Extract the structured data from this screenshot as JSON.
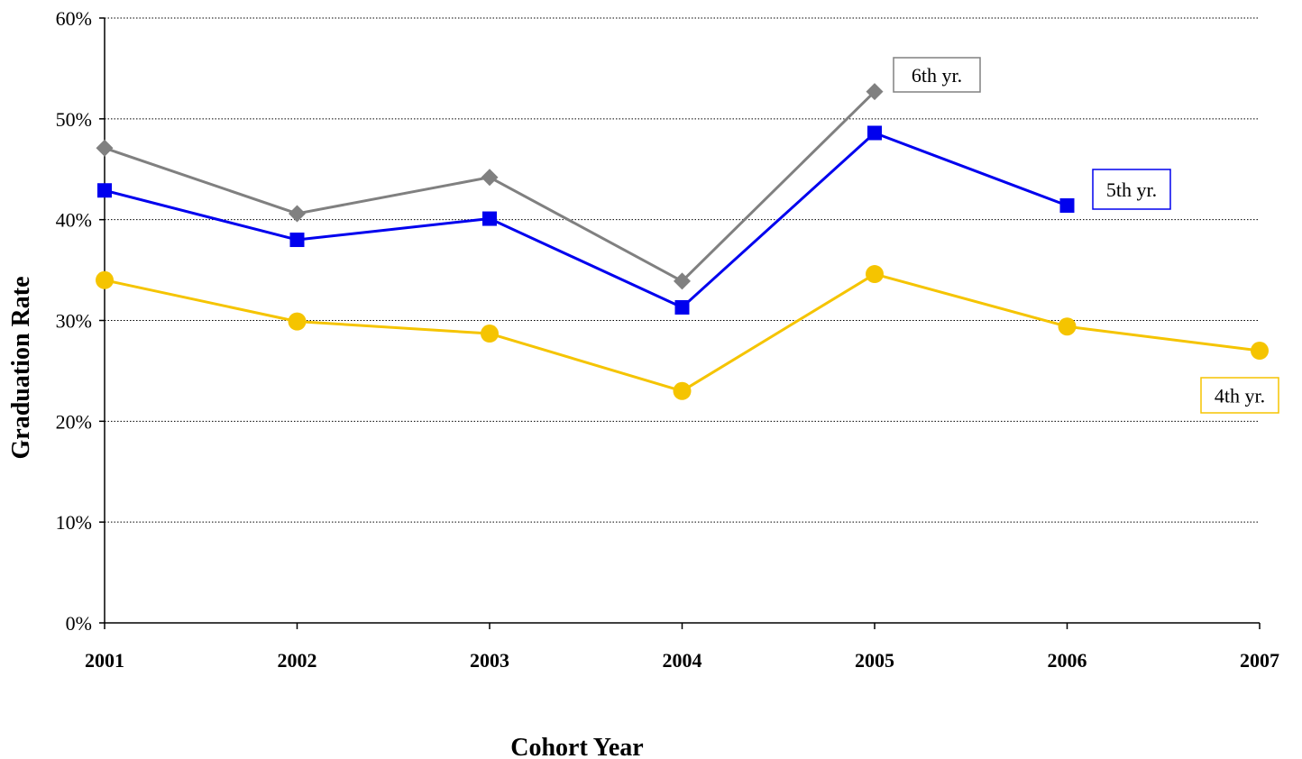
{
  "chart_data": {
    "type": "line",
    "title": "",
    "xlabel": "Cohort Year",
    "ylabel": "Graduation Rate",
    "x": [
      "2001",
      "2002",
      "2003",
      "2004",
      "2005",
      "2006",
      "2007"
    ],
    "ylim": [
      0,
      60
    ],
    "yticks": [
      "0%",
      "10%",
      "20%",
      "30%",
      "40%",
      "50%",
      "60%"
    ],
    "grid": "horizontal dotted",
    "series": [
      {
        "name": "6th yr.",
        "color": "#808080",
        "marker": "diamond",
        "values": [
          47.1,
          40.6,
          44.2,
          33.9,
          52.7,
          null,
          null
        ]
      },
      {
        "name": "5th yr.",
        "color": "#0000ee",
        "marker": "square",
        "values": [
          42.9,
          38.0,
          40.1,
          31.3,
          48.6,
          41.4,
          null
        ]
      },
      {
        "name": "4th yr.",
        "color": "#f5c400",
        "marker": "circle",
        "values": [
          34.0,
          29.9,
          28.7,
          23.0,
          34.6,
          29.4,
          27.0
        ]
      }
    ]
  }
}
